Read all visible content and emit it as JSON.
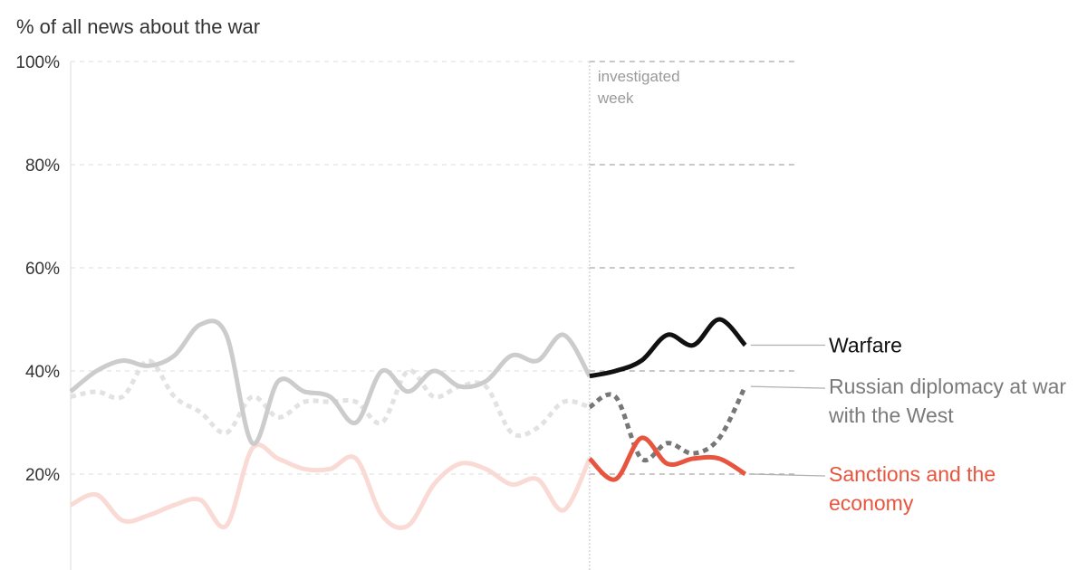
{
  "chart_data": {
    "type": "line",
    "ylabel": "% of all news about the war",
    "ylim": [
      0,
      100
    ],
    "yticks": [
      {
        "value": 20,
        "label": "20%"
      },
      {
        "value": 40,
        "label": "40%"
      },
      {
        "value": 60,
        "label": "60%"
      },
      {
        "value": 80,
        "label": "80%"
      },
      {
        "value": 100,
        "label": "100%"
      }
    ],
    "xlim": [
      0,
      28
    ],
    "grid": true,
    "investigated_week": {
      "x": 20,
      "label_lines": [
        "investigated",
        "week"
      ]
    },
    "series": [
      {
        "name": "Warfare",
        "label_lines": [
          "Warfare"
        ],
        "color": "#111111",
        "faded_color": "#cccccc",
        "label_color": "#111111",
        "dashed": false,
        "x": [
          0,
          1,
          2,
          3,
          4,
          5,
          6,
          7,
          8,
          9,
          10,
          11,
          12,
          13,
          14,
          15,
          16,
          17,
          18,
          19,
          20,
          21,
          22,
          23,
          24,
          25,
          26,
          27,
          28
        ],
        "values": [
          36,
          40,
          42,
          41,
          43,
          49,
          47,
          26,
          38,
          36,
          35,
          30,
          40,
          36,
          40,
          37,
          38,
          43,
          42,
          47,
          39,
          40,
          42,
          47,
          45,
          50,
          45,
          null,
          null
        ]
      },
      {
        "name": "Russian diplomacy at war with the West",
        "label_lines": [
          "Russian diplomacy at war",
          "with the West"
        ],
        "color": "#777777",
        "faded_color": "#e2e2e2",
        "label_color": "#7a7a7a",
        "dashed": true,
        "x": [
          0,
          1,
          2,
          3,
          4,
          5,
          6,
          7,
          8,
          9,
          10,
          11,
          12,
          13,
          14,
          15,
          16,
          17,
          18,
          19,
          20,
          21,
          22,
          23,
          24,
          25,
          26,
          27,
          28
        ],
        "values": [
          35,
          36,
          35,
          42,
          35,
          32,
          28,
          35,
          31,
          34,
          34,
          34,
          30,
          40,
          35,
          37,
          37,
          28,
          29,
          34,
          33,
          35,
          23,
          26,
          24,
          27,
          37,
          null,
          null
        ]
      },
      {
        "name": "Sanctions and the economy",
        "label_lines": [
          "Sanctions and the",
          "economy"
        ],
        "color": "#e8553f",
        "faded_color": "#fadad5",
        "label_color": "#e8553f",
        "dashed": false,
        "x": [
          0,
          1,
          2,
          3,
          4,
          5,
          6,
          7,
          8,
          9,
          10,
          11,
          12,
          13,
          14,
          15,
          16,
          17,
          18,
          19,
          20,
          21,
          22,
          23,
          24,
          25,
          26,
          27,
          28
        ],
        "values": [
          14,
          16,
          11,
          12,
          14,
          15,
          10,
          25,
          23,
          21,
          21,
          23,
          12,
          10,
          18,
          22,
          21,
          18,
          19,
          13,
          23,
          19,
          27,
          22,
          23,
          23,
          20,
          null,
          null
        ]
      }
    ]
  }
}
